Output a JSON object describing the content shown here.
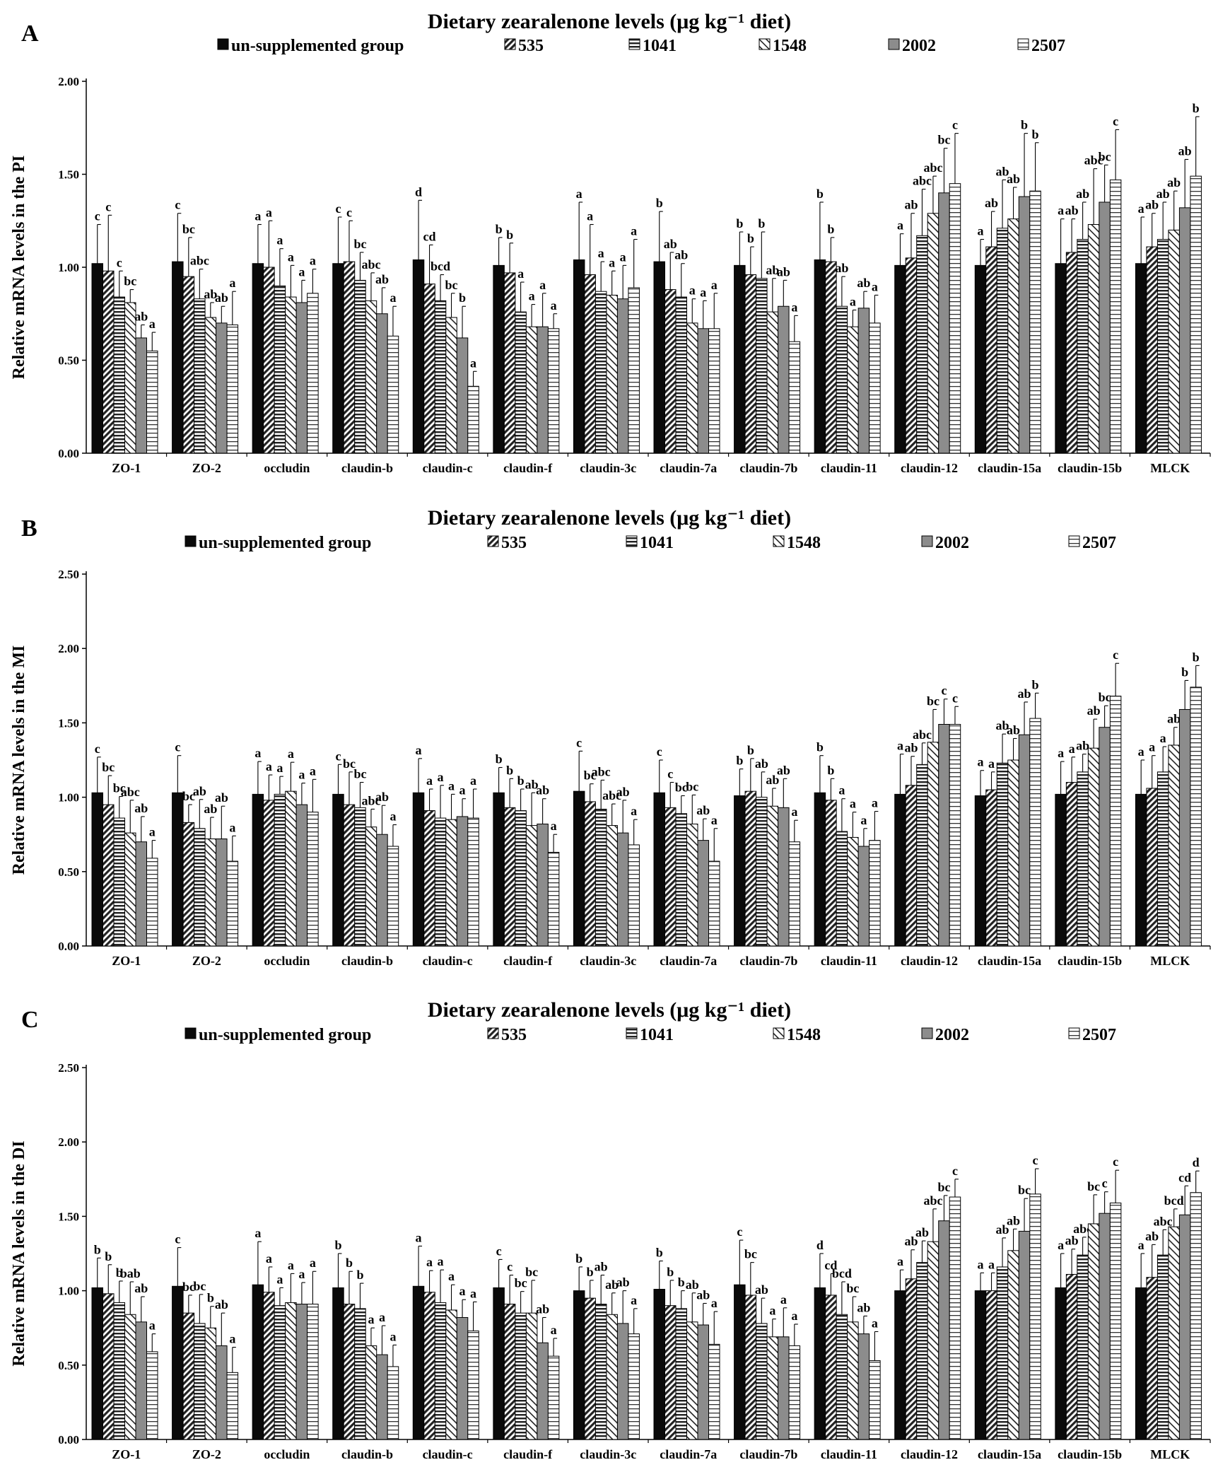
{
  "chart_data": [
    {
      "type": "bar",
      "panel": "A",
      "title": "Dietary zearalenone levels (μg kg⁻¹ diet)",
      "ylabel": "Relative  mRNA  levels  in  the  PI",
      "ylim": [
        0,
        2.0
      ],
      "yticks": [
        "0.00",
        "0.50",
        "1.00",
        "1.50",
        "2.00"
      ],
      "legend_position": "top",
      "categories": [
        "ZO-1",
        "ZO-2",
        "occludin",
        "claudin-b",
        "claudin-c",
        "claudin-f",
        "claudin-3c",
        "claudin-7a",
        "claudin-7b",
        "claudin-11",
        "claudin-12",
        "claudin-15a",
        "claudin-15b",
        "MLCK"
      ],
      "series": [
        {
          "name": "un-supplemented group",
          "values": [
            1.02,
            1.03,
            1.02,
            1.02,
            1.04,
            1.01,
            1.04,
            1.03,
            1.01,
            1.04,
            1.01,
            1.01,
            1.02,
            1.02
          ],
          "errors": [
            0.21,
            0.26,
            0.21,
            0.25,
            0.32,
            0.15,
            0.31,
            0.27,
            0.18,
            0.31,
            0.17,
            0.14,
            0.24,
            0.25
          ]
        },
        {
          "name": "535",
          "values": [
            0.98,
            0.95,
            1.0,
            1.03,
            0.91,
            0.97,
            0.96,
            0.88,
            0.96,
            1.03,
            1.05,
            1.11,
            1.08,
            1.11
          ],
          "errors": [
            0.3,
            0.21,
            0.25,
            0.22,
            0.21,
            0.16,
            0.27,
            0.2,
            0.15,
            0.13,
            0.24,
            0.19,
            0.18,
            0.18
          ]
        },
        {
          "name": "1041",
          "values": [
            0.84,
            0.83,
            0.9,
            0.93,
            0.82,
            0.76,
            0.87,
            0.84,
            0.94,
            0.79,
            1.17,
            1.21,
            1.15,
            1.15
          ],
          "errors": [
            0.14,
            0.16,
            0.2,
            0.15,
            0.14,
            0.16,
            0.16,
            0.18,
            0.25,
            0.16,
            0.25,
            0.26,
            0.2,
            0.2
          ]
        },
        {
          "name": "1548",
          "values": [
            0.81,
            0.73,
            0.84,
            0.82,
            0.73,
            0.68,
            0.85,
            0.7,
            0.76,
            0.68,
            1.29,
            1.26,
            1.23,
            1.2
          ],
          "errors": [
            0.07,
            0.08,
            0.17,
            0.15,
            0.13,
            0.12,
            0.13,
            0.13,
            0.18,
            0.09,
            0.2,
            0.17,
            0.3,
            0.21
          ]
        },
        {
          "name": "2002",
          "values": [
            0.62,
            0.7,
            0.81,
            0.75,
            0.62,
            0.68,
            0.83,
            0.67,
            0.79,
            0.78,
            1.4,
            1.38,
            1.35,
            1.32
          ],
          "errors": [
            0.07,
            0.09,
            0.12,
            0.14,
            0.17,
            0.18,
            0.18,
            0.15,
            0.14,
            0.09,
            0.24,
            0.34,
            0.2,
            0.26
          ]
        },
        {
          "name": "2507",
          "values": [
            0.55,
            0.69,
            0.86,
            0.63,
            0.36,
            0.67,
            0.89,
            0.67,
            0.6,
            0.7,
            1.45,
            1.41,
            1.47,
            1.49
          ],
          "errors": [
            0.1,
            0.18,
            0.13,
            0.16,
            0.08,
            0.08,
            0.26,
            0.19,
            0.14,
            0.15,
            0.27,
            0.26,
            0.27,
            0.32
          ]
        }
      ],
      "significance": [
        [
          "c",
          "c",
          "c",
          "bc",
          "ab",
          "a"
        ],
        [
          "c",
          "bc",
          "abc",
          "ab",
          "ab",
          "a"
        ],
        [
          "a",
          "a",
          "a",
          "a",
          "a",
          "a"
        ],
        [
          "c",
          "c",
          "bc",
          "abc",
          "ab",
          "a"
        ],
        [
          "d",
          "cd",
          "bcd",
          "bc",
          "b",
          "a"
        ],
        [
          "b",
          "b",
          "a",
          "a",
          "a",
          "a"
        ],
        [
          "a",
          "a",
          "a",
          "a",
          "a",
          "a"
        ],
        [
          "b",
          "ab",
          "ab",
          "a",
          "a",
          "a"
        ],
        [
          "b",
          "b",
          "b",
          "ab",
          "ab",
          "a"
        ],
        [
          "b",
          "b",
          "ab",
          "a",
          "ab",
          "a"
        ],
        [
          "a",
          "ab",
          "abc",
          "abc",
          "bc",
          "c"
        ],
        [
          "a",
          "ab",
          "ab",
          "ab",
          "b",
          "b"
        ],
        [
          "a",
          "ab",
          "ab",
          "abc",
          "bc",
          "c"
        ],
        [
          "a",
          "ab",
          "ab",
          "ab",
          "ab",
          "b"
        ]
      ]
    },
    {
      "type": "bar",
      "panel": "B",
      "title": "Dietary zearalenone levels (μg kg⁻¹ diet)",
      "ylabel": "Relative  mRNA  levels  in  the  MI",
      "ylim": [
        0,
        2.5
      ],
      "yticks": [
        "0.00",
        "0.50",
        "1.00",
        "1.50",
        "2.00",
        "2.50"
      ],
      "legend_position": "top",
      "categories": [
        "ZO-1",
        "ZO-2",
        "occludin",
        "claudin-b",
        "claudin-c",
        "claudin-f",
        "claudin-3c",
        "claudin-7a",
        "claudin-7b",
        "claudin-11",
        "claudin-12",
        "claudin-15a",
        "claudin-15b",
        "MLCK"
      ],
      "series": [
        {
          "name": "un-supplemented group",
          "values": [
            1.03,
            1.03,
            1.02,
            1.02,
            1.03,
            1.03,
            1.04,
            1.03,
            1.01,
            1.03,
            1.02,
            1.01,
            1.02,
            1.02
          ],
          "errors": [
            0.24,
            0.25,
            0.22,
            0.2,
            0.23,
            0.17,
            0.27,
            0.22,
            0.18,
            0.25,
            0.27,
            0.17,
            0.22,
            0.23
          ]
        },
        {
          "name": "535",
          "values": [
            0.95,
            0.83,
            0.98,
            0.95,
            0.91,
            0.93,
            0.97,
            0.93,
            1.04,
            0.98,
            1.08,
            1.05,
            1.1,
            1.06
          ]
        },
        {
          "name": "1041",
          "values": [
            0.86,
            0.79,
            1.02,
            0.93,
            0.86,
            0.91,
            0.92,
            0.89,
            1.0,
            0.77,
            1.22,
            1.23,
            1.17,
            1.17
          ]
        },
        {
          "name": "1548",
          "values": [
            0.76,
            0.72,
            1.04,
            0.8,
            0.85,
            0.81,
            0.81,
            0.82,
            0.94,
            0.73,
            1.37,
            1.25,
            1.33,
            1.35
          ]
        },
        {
          "name": "2002",
          "values": [
            0.7,
            0.72,
            0.95,
            0.75,
            0.87,
            0.82,
            0.76,
            0.71,
            0.93,
            0.67,
            1.49,
            1.42,
            1.47,
            1.59
          ]
        },
        {
          "name": "2507",
          "values": [
            0.59,
            0.57,
            0.9,
            0.67,
            0.86,
            0.63,
            0.68,
            0.57,
            0.7,
            0.71,
            1.49,
            1.53,
            1.68,
            1.74
          ]
        }
      ],
      "significance": [
        [
          "c",
          "bc",
          "bc",
          "abc",
          "ab",
          "a"
        ],
        [
          "c",
          "bc",
          "ab",
          "ab",
          "ab",
          "a"
        ],
        [
          "a",
          "a",
          "a",
          "a",
          "a",
          "a"
        ],
        [
          "c",
          "bc",
          "bc",
          "abc",
          "ab",
          "a"
        ],
        [
          "a",
          "a",
          "a",
          "a",
          "a",
          "a"
        ],
        [
          "b",
          "b",
          "b",
          "ab",
          "ab",
          "a"
        ],
        [
          "c",
          "bc",
          "abc",
          "abc",
          "ab",
          "a"
        ],
        [
          "c",
          "c",
          "bc",
          "bc",
          "ab",
          "a"
        ],
        [
          "b",
          "b",
          "ab",
          "ab",
          "ab",
          "a"
        ],
        [
          "b",
          "b",
          "a",
          "a",
          "a",
          "a"
        ],
        [
          "a",
          "ab",
          "abc",
          "bc",
          "c",
          "c"
        ],
        [
          "a",
          "a",
          "ab",
          "ab",
          "ab",
          "b"
        ],
        [
          "a",
          "a",
          "ab",
          "ab",
          "bc",
          "c"
        ],
        [
          "a",
          "a",
          "a",
          "ab",
          "b",
          "b"
        ]
      ]
    },
    {
      "type": "bar",
      "panel": "C",
      "title": "Dietary zearalenone levels (μg kg⁻¹ diet)",
      "ylabel": "Relative  mRNA  levels  in  the  DI",
      "ylim": [
        0,
        2.5
      ],
      "yticks": [
        "0.00",
        "0.50",
        "1.00",
        "1.50",
        "2.00",
        "2.50"
      ],
      "legend_position": "top",
      "categories": [
        "ZO-1",
        "ZO-2",
        "occludin",
        "claudin-b",
        "claudin-c",
        "claudin-f",
        "claudin-3c",
        "claudin-7a",
        "claudin-7b",
        "claudin-11",
        "claudin-12",
        "claudin-15a",
        "claudin-15b",
        "MLCK"
      ],
      "series": [
        {
          "name": "un-supplemented group",
          "values": [
            1.02,
            1.03,
            1.04,
            1.02,
            1.03,
            1.02,
            1.0,
            1.01,
            1.04,
            1.02,
            1.0,
            1.0,
            1.02,
            1.02
          ],
          "errors": [
            0.2,
            0.26,
            0.29,
            0.23,
            0.27,
            0.19,
            0.16,
            0.19,
            0.3,
            0.23,
            0.14,
            0.12,
            0.23,
            0.23
          ]
        },
        {
          "name": "535",
          "values": [
            0.98,
            0.85,
            0.99,
            0.91,
            0.99,
            0.91,
            0.95,
            0.9,
            0.97,
            0.97,
            1.08,
            1.0,
            1.11,
            1.09
          ]
        },
        {
          "name": "1041",
          "values": [
            0.92,
            0.78,
            0.9,
            0.88,
            0.92,
            0.85,
            0.91,
            0.88,
            0.78,
            0.84,
            1.19,
            1.16,
            1.24,
            1.24
          ]
        },
        {
          "name": "1548",
          "values": [
            0.84,
            0.75,
            0.92,
            0.63,
            0.87,
            0.85,
            0.84,
            0.79,
            0.69,
            0.79,
            1.33,
            1.27,
            1.45,
            1.43
          ]
        },
        {
          "name": "2002",
          "values": [
            0.79,
            0.63,
            0.91,
            0.57,
            0.82,
            0.65,
            0.78,
            0.77,
            0.69,
            0.71,
            1.47,
            1.4,
            1.52,
            1.51
          ]
        },
        {
          "name": "2507",
          "values": [
            0.59,
            0.45,
            0.91,
            0.49,
            0.73,
            0.56,
            0.71,
            0.64,
            0.63,
            0.53,
            1.63,
            1.65,
            1.59,
            1.66
          ]
        }
      ],
      "significance": [
        [
          "b",
          "b",
          "b",
          "bab",
          "ab",
          "a"
        ],
        [
          "c",
          "bc",
          "bc",
          "b",
          "ab",
          "a"
        ],
        [
          "a",
          "a",
          "a",
          "a",
          "a",
          "a"
        ],
        [
          "b",
          "b",
          "b",
          "a",
          "a",
          "a"
        ],
        [
          "a",
          "a",
          "a",
          "a",
          "a",
          "a"
        ],
        [
          "c",
          "c",
          "bc",
          "bc",
          "ab",
          "a"
        ],
        [
          "b",
          "b",
          "ab",
          "ab",
          "ab",
          "a"
        ],
        [
          "b",
          "b",
          "b",
          "ab",
          "ab",
          "a"
        ],
        [
          "c",
          "bc",
          "ab",
          "a",
          "a",
          "a"
        ],
        [
          "d",
          "cd",
          "bcd",
          "bc",
          "ab",
          "a"
        ],
        [
          "a",
          "ab",
          "ab",
          "abc",
          "bc",
          "c"
        ],
        [
          "a",
          "a",
          "ab",
          "ab",
          "bc",
          "c"
        ],
        [
          "a",
          "ab",
          "abc",
          "bc",
          "c",
          "c"
        ],
        [
          "a",
          "ab",
          "abc",
          "bcd",
          "cd",
          "d"
        ]
      ]
    }
  ],
  "legend": [
    "un-supplemented group",
    "535",
    "1041",
    "1548",
    "2002",
    "2507"
  ]
}
